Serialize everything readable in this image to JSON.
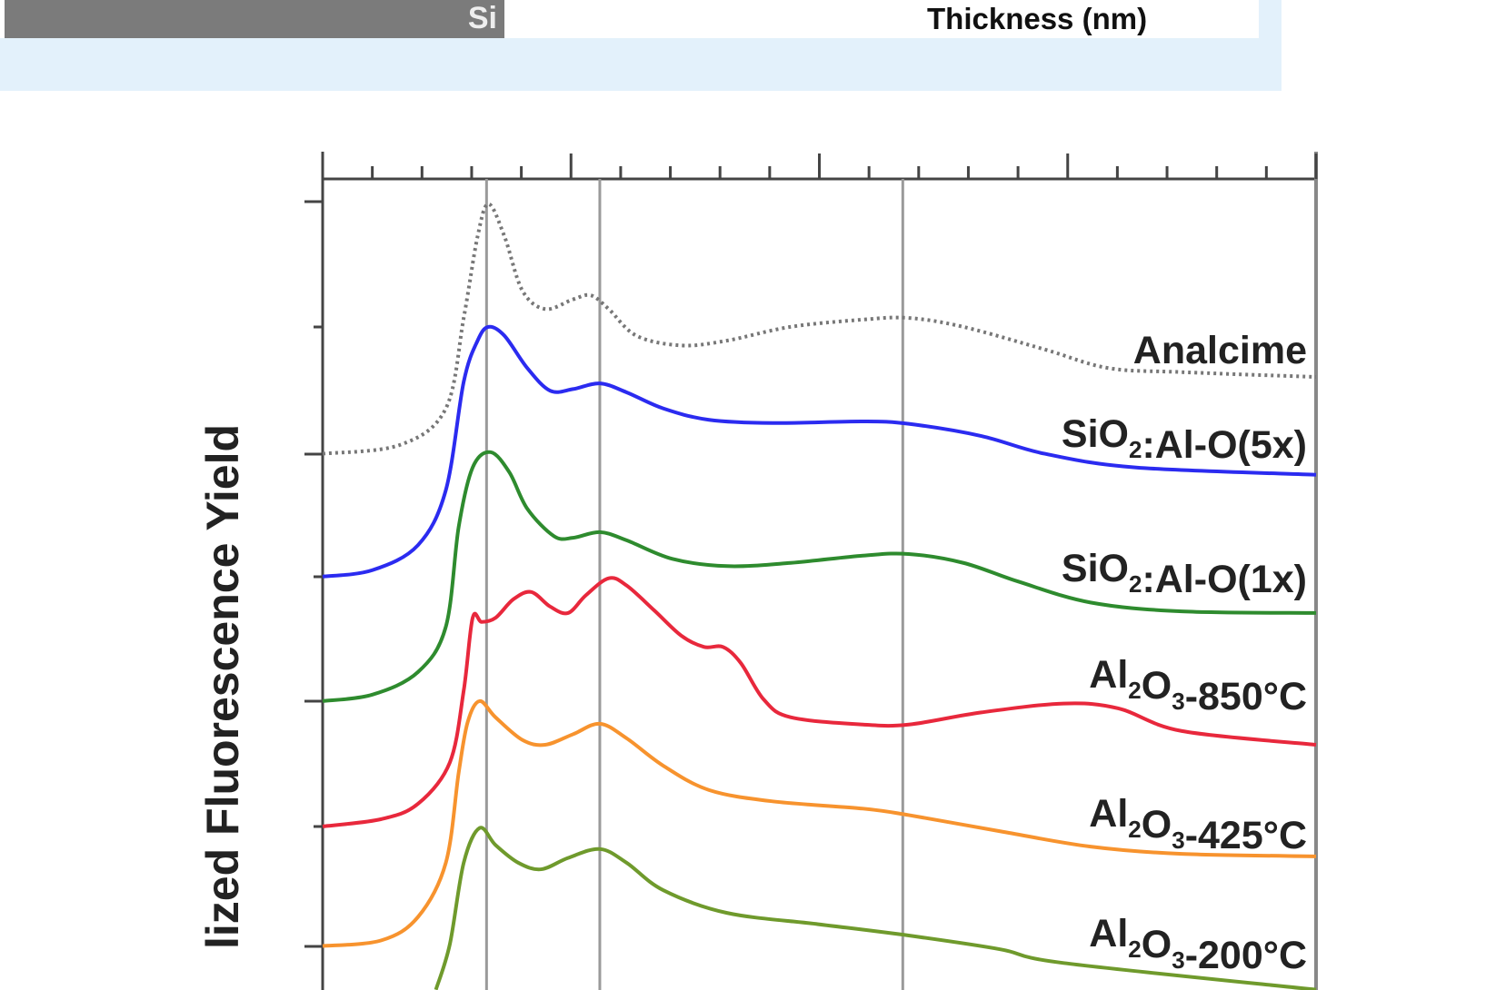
{
  "top_panel": {
    "layer_label": "Si",
    "axis_label": "Thickness (nm)"
  },
  "chart_data": {
    "type": "line",
    "ylabel": "lized Fluorescence Yield",
    "xlabel": "",
    "xlim": [
      0,
      100
    ],
    "ylim": [
      0,
      100
    ],
    "grid": false,
    "reference_lines_x": [
      16.5,
      27.9,
      58.4
    ],
    "colors": {
      "axis": "#444444",
      "reference": "#9a9a9a"
    },
    "series": [
      {
        "name": "Analcime",
        "label": [
          {
            "t": "Analcime"
          }
        ],
        "color": "#777777",
        "dash": true,
        "points": [
          [
            0,
            66.0
          ],
          [
            7.8,
            67.1
          ],
          [
            12.4,
            71.6
          ],
          [
            14.2,
            82.8
          ],
          [
            15.6,
            92.9
          ],
          [
            16.7,
            96.9
          ],
          [
            18.3,
            92.9
          ],
          [
            20.1,
            86.2
          ],
          [
            22.4,
            83.9
          ],
          [
            25.2,
            85.1
          ],
          [
            27.0,
            85.6
          ],
          [
            28.8,
            83.9
          ],
          [
            31.6,
            80.6
          ],
          [
            36.1,
            79.4
          ],
          [
            40.7,
            80.0
          ],
          [
            47.1,
            81.7
          ],
          [
            54.4,
            82.6
          ],
          [
            59.0,
            82.8
          ],
          [
            64.5,
            81.7
          ],
          [
            72.7,
            78.9
          ],
          [
            79.1,
            76.6
          ],
          [
            86.5,
            76.1
          ],
          [
            100,
            75.5
          ]
        ]
      },
      {
        "name": "SiO2:Al-O(5x)",
        "label": [
          {
            "t": "SiO"
          },
          {
            "t": "2",
            "sub": true
          },
          {
            "t": ":Al-O(5x)"
          }
        ],
        "color": "#2b2bf0",
        "points": [
          [
            0,
            50.8
          ],
          [
            5.0,
            51.6
          ],
          [
            9.6,
            54.7
          ],
          [
            12.4,
            61.5
          ],
          [
            14.2,
            74.9
          ],
          [
            15.6,
            80.0
          ],
          [
            16.7,
            81.7
          ],
          [
            18.3,
            80.6
          ],
          [
            20.6,
            76.6
          ],
          [
            22.9,
            73.8
          ],
          [
            25.2,
            74.0
          ],
          [
            27.9,
            74.7
          ],
          [
            30.6,
            73.6
          ],
          [
            34.3,
            71.6
          ],
          [
            38.9,
            70.2
          ],
          [
            45.3,
            69.8
          ],
          [
            54.4,
            70.0
          ],
          [
            59.0,
            69.7
          ],
          [
            66.3,
            68.2
          ],
          [
            72.7,
            66.0
          ],
          [
            81.9,
            64.3
          ],
          [
            100,
            63.4
          ]
        ]
      },
      {
        "name": "SiO2:Al-O(1x)",
        "label": [
          {
            "t": "SiO"
          },
          {
            "t": "2",
            "sub": true
          },
          {
            "t": ":Al-O(1x)"
          }
        ],
        "color": "#2e8b2e",
        "points": [
          [
            0,
            35.4
          ],
          [
            5.0,
            36.2
          ],
          [
            9.6,
            39.0
          ],
          [
            12.4,
            44.6
          ],
          [
            13.7,
            57.0
          ],
          [
            15.1,
            64.3
          ],
          [
            16.9,
            66.2
          ],
          [
            18.8,
            63.7
          ],
          [
            20.6,
            59.2
          ],
          [
            23.3,
            55.8
          ],
          [
            25.2,
            55.6
          ],
          [
            27.9,
            56.3
          ],
          [
            30.6,
            55.3
          ],
          [
            35.2,
            53.0
          ],
          [
            40.7,
            52.1
          ],
          [
            47.1,
            52.5
          ],
          [
            54.4,
            53.4
          ],
          [
            59.0,
            53.6
          ],
          [
            64.5,
            52.5
          ],
          [
            70.0,
            50.2
          ],
          [
            77.3,
            47.6
          ],
          [
            86.5,
            46.5
          ],
          [
            100,
            46.3
          ]
        ]
      },
      {
        "name": "Al2O3-850°C",
        "label": [
          {
            "t": "Al"
          },
          {
            "t": "2",
            "sub": true
          },
          {
            "t": "O"
          },
          {
            "t": "3",
            "sub": true
          },
          {
            "t": "-850°C"
          }
        ],
        "color": "#e8283c",
        "points": [
          [
            0,
            19.9
          ],
          [
            5.9,
            20.8
          ],
          [
            9.6,
            22.7
          ],
          [
            12.8,
            27.8
          ],
          [
            14.2,
            36.7
          ],
          [
            15.1,
            45.7
          ],
          [
            16.0,
            45.2
          ],
          [
            17.4,
            45.7
          ],
          [
            19.2,
            48.0
          ],
          [
            21.0,
            48.9
          ],
          [
            22.9,
            47.1
          ],
          [
            24.7,
            46.3
          ],
          [
            26.5,
            48.5
          ],
          [
            28.8,
            50.6
          ],
          [
            30.6,
            49.7
          ],
          [
            33.4,
            46.6
          ],
          [
            36.1,
            43.5
          ],
          [
            38.4,
            42.1
          ],
          [
            40.3,
            42.1
          ],
          [
            42.1,
            40.1
          ],
          [
            44.4,
            35.6
          ],
          [
            47.1,
            33.4
          ],
          [
            54.4,
            32.5
          ],
          [
            59.0,
            32.5
          ],
          [
            66.3,
            34.0
          ],
          [
            74.6,
            35.1
          ],
          [
            80.1,
            34.5
          ],
          [
            86.5,
            31.7
          ],
          [
            100,
            30.0
          ]
        ]
      },
      {
        "name": "Al2O3-425°C",
        "label": [
          {
            "t": "Al"
          },
          {
            "t": "2",
            "sub": true
          },
          {
            "t": "O"
          },
          {
            "t": "3",
            "sub": true
          },
          {
            "t": "-425°C"
          }
        ],
        "color": "#f7932e",
        "points": [
          [
            0,
            5.1
          ],
          [
            5.9,
            5.8
          ],
          [
            9.6,
            8.7
          ],
          [
            12.4,
            15.4
          ],
          [
            13.7,
            26.6
          ],
          [
            14.6,
            32.8
          ],
          [
            15.8,
            35.4
          ],
          [
            17.4,
            33.4
          ],
          [
            20.1,
            30.6
          ],
          [
            22.4,
            30.0
          ],
          [
            25.2,
            31.3
          ],
          [
            27.9,
            32.6
          ],
          [
            30.6,
            30.8
          ],
          [
            34.3,
            27.4
          ],
          [
            38.9,
            24.4
          ],
          [
            45.3,
            23.0
          ],
          [
            54.4,
            22.1
          ],
          [
            59.0,
            21.3
          ],
          [
            68.2,
            19.3
          ],
          [
            77.3,
            17.4
          ],
          [
            86.5,
            16.5
          ],
          [
            100,
            16.2
          ]
        ]
      },
      {
        "name": "Al2O3-200°C",
        "label": [
          {
            "t": "Al"
          },
          {
            "t": "2",
            "sub": true
          },
          {
            "t": "O"
          },
          {
            "t": "3",
            "sub": true
          },
          {
            "t": "-200°C"
          }
        ],
        "color": "#6f9a2c",
        "points": [
          [
            11.4,
            -0.3
          ],
          [
            12.8,
            5.3
          ],
          [
            14.2,
            15.4
          ],
          [
            15.8,
            19.7
          ],
          [
            17.4,
            17.6
          ],
          [
            19.7,
            15.4
          ],
          [
            22.0,
            14.6
          ],
          [
            24.7,
            16.0
          ],
          [
            27.9,
            17.1
          ],
          [
            30.6,
            15.4
          ],
          [
            34.3,
            12.0
          ],
          [
            40.7,
            9.2
          ],
          [
            49.9,
            7.8
          ],
          [
            59.0,
            6.4
          ],
          [
            68.2,
            4.7
          ],
          [
            74.6,
            3.0
          ],
          [
            100,
            -0.3
          ]
        ]
      }
    ]
  }
}
